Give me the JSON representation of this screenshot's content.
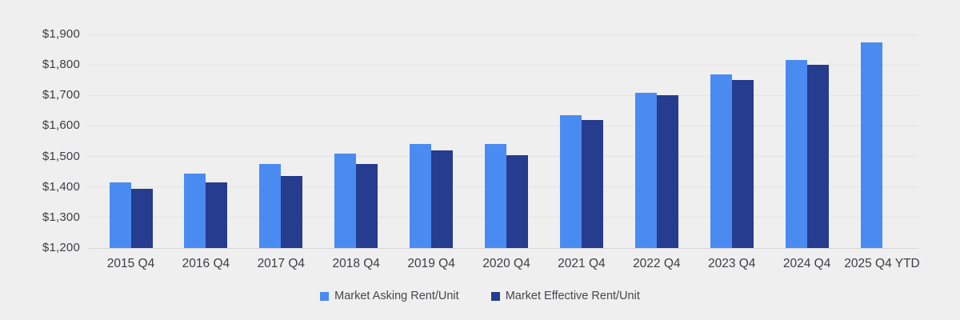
{
  "chart_data": {
    "type": "bar",
    "title": "",
    "xlabel": "",
    "ylabel": "",
    "categories": [
      "2015 Q4",
      "2016 Q4",
      "2017 Q4",
      "2018 Q4",
      "2019 Q4",
      "2020 Q4",
      "2021 Q4",
      "2022 Q4",
      "2023 Q4",
      "2024 Q4",
      "2025 Q4 YTD"
    ],
    "series": [
      {
        "name": "Market Asking Rent/Unit",
        "color": "#4a8bf2",
        "values": [
          1415,
          1445,
          1475,
          1510,
          1540,
          1540,
          1635,
          1710,
          1770,
          1815,
          1875
        ]
      },
      {
        "name": "Market Effective Rent/Unit",
        "color": "#263c8e",
        "values": [
          1395,
          1415,
          1435,
          1475,
          1520,
          1505,
          1620,
          1700,
          1750,
          1800,
          null
        ]
      }
    ],
    "ylim": [
      1200,
      1900
    ],
    "yticks": [
      {
        "value": 1200,
        "label": "$1,200"
      },
      {
        "value": 1300,
        "label": "$1,300"
      },
      {
        "value": 1400,
        "label": "$1,400"
      },
      {
        "value": 1500,
        "label": "$1,500"
      },
      {
        "value": 1600,
        "label": "$1,600"
      },
      {
        "value": 1700,
        "label": "$1,700"
      },
      {
        "value": 1800,
        "label": "$1,800"
      },
      {
        "value": 1900,
        "label": "$1,900"
      }
    ],
    "grid": true,
    "legend_position": "bottom"
  },
  "colors": {
    "background": "#efefef",
    "gridline": "#e2e2e2",
    "baseline": "#d6d6d6",
    "axis_text": "#3d3e42",
    "legend_text": "#46474b"
  }
}
